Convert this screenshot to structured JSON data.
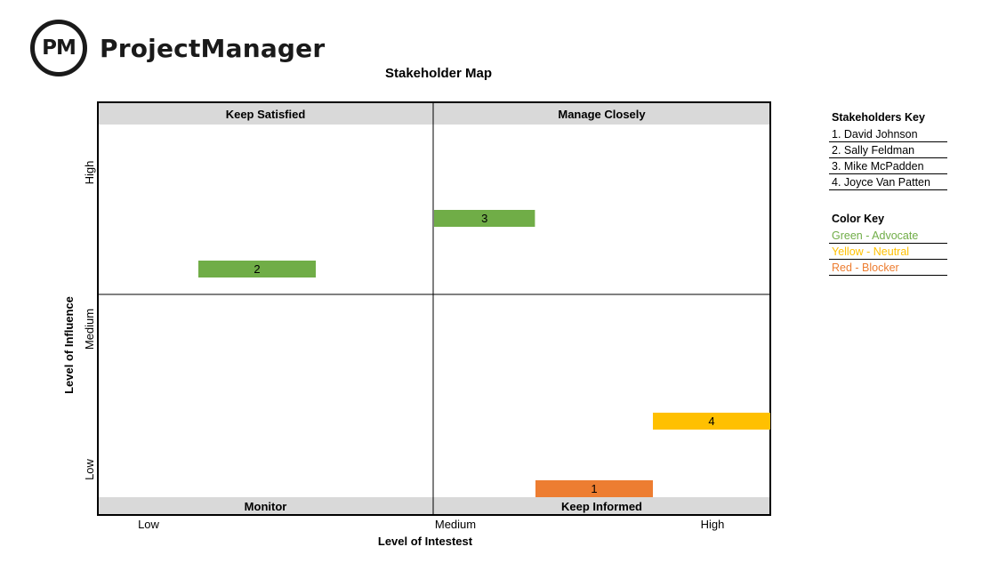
{
  "brand": {
    "mark": "PM",
    "name": "ProjectManager"
  },
  "chart_data": {
    "type": "scatter",
    "title": "Stakeholder Map",
    "xlabel": "Level of Intestest",
    "ylabel": "Level of Influence",
    "x_ticks": [
      "Low",
      "Medium",
      "High"
    ],
    "y_ticks": [
      "High",
      "Medium",
      "Low"
    ],
    "xlim": [
      0,
      6
    ],
    "ylim": [
      0,
      7.3
    ],
    "quadrants": {
      "top_left": "Keep Satisfied",
      "top_right": "Manage Closely",
      "bottom_left": "Monitor",
      "bottom_right": "Keep Informed"
    },
    "grid": false,
    "points": [
      {
        "label": "1",
        "x": 3.9,
        "y": 0.15,
        "category": "Red"
      },
      {
        "label": "2",
        "x": 1.4,
        "y": 4.15,
        "category": "Green"
      },
      {
        "label": "3",
        "x": 0.9,
        "y": 5.05,
        "category": "Green",
        "x_start": 3.0
      },
      {
        "label": "4",
        "x": 5.0,
        "y": 1.6,
        "category": "Yellow"
      }
    ],
    "colors": {
      "Green": "#70ad47",
      "Yellow": "#ffc000",
      "Red": "#ed7d31"
    }
  },
  "stakeholders_key": {
    "title": "Stakeholders Key",
    "items": [
      "1. David Johnson",
      "2. Sally Feldman",
      "3. Mike McPadden",
      "4. Joyce Van Patten"
    ]
  },
  "color_key": {
    "title": "Color Key",
    "items": [
      {
        "label": "Green - Advocate",
        "color": "#70ad47"
      },
      {
        "label": "Yellow - Neutral",
        "color": "#ffc000"
      },
      {
        "label": "Red - Blocker",
        "color": "#ed7d31"
      }
    ]
  }
}
